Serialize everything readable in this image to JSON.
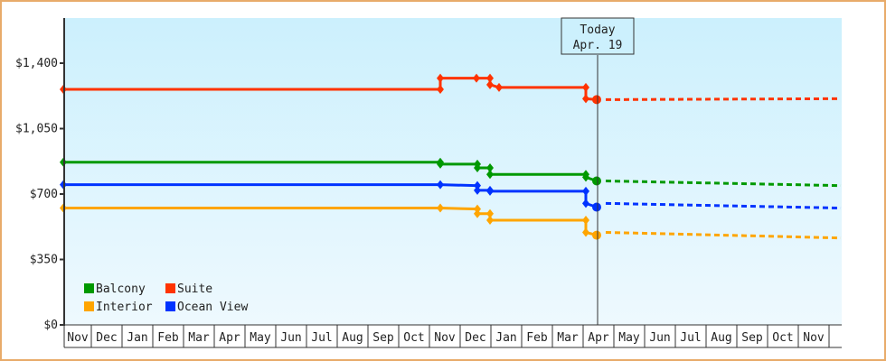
{
  "chart_data": {
    "type": "line",
    "title": "",
    "xlabel": "",
    "ylabel": "",
    "ylim": [
      0,
      1650
    ],
    "yticks": [
      0,
      350,
      700,
      1050,
      1400
    ],
    "ytick_labels": [
      "$0",
      "$350",
      "$700",
      "$1,050",
      "$1,400"
    ],
    "categories": [
      "Nov",
      "Dec",
      "Jan",
      "Feb",
      "Mar",
      "Apr",
      "May",
      "Jun",
      "Jul",
      "Aug",
      "Sep",
      "Oct",
      "Nov",
      "Dec",
      "Jan",
      "Feb",
      "Mar",
      "Apr",
      "May",
      "Jun",
      "Jul",
      "Aug",
      "Sep",
      "Oct",
      "Nov"
    ],
    "today_marker": {
      "label_line1": "Today",
      "label_line2": "Apr. 19"
    },
    "legend": [
      {
        "name": "Balcony",
        "color": "#009900"
      },
      {
        "name": "Suite",
        "color": "#ff3300"
      },
      {
        "name": "Interior",
        "color": "#ffa500"
      },
      {
        "name": "Ocean View",
        "color": "#0033ff"
      }
    ],
    "series": [
      {
        "name": "Suite",
        "color": "#ff3300",
        "history": [
          [
            70,
            1260
          ],
          [
            487,
            1260
          ],
          [
            487,
            1320
          ],
          [
            527,
            1320
          ],
          [
            542,
            1320
          ],
          [
            542,
            1285
          ],
          [
            552,
            1270
          ],
          [
            648,
            1270
          ],
          [
            648,
            1210
          ],
          [
            660,
            1205
          ]
        ],
        "projection": [
          [
            660,
            1205
          ],
          [
            930,
            1210
          ]
        ]
      },
      {
        "name": "Balcony",
        "color": "#009900",
        "history": [
          [
            70,
            870
          ],
          [
            487,
            870
          ],
          [
            487,
            860
          ],
          [
            528,
            860
          ],
          [
            528,
            840
          ],
          [
            542,
            840
          ],
          [
            542,
            805
          ],
          [
            648,
            805
          ],
          [
            648,
            790
          ],
          [
            660,
            770
          ]
        ],
        "projection": [
          [
            660,
            770
          ],
          [
            930,
            745
          ]
        ]
      },
      {
        "name": "Ocean View",
        "color": "#0033ff",
        "history": [
          [
            70,
            750
          ],
          [
            487,
            750
          ],
          [
            528,
            745
          ],
          [
            528,
            720
          ],
          [
            542,
            720
          ],
          [
            542,
            715
          ],
          [
            648,
            715
          ],
          [
            648,
            650
          ],
          [
            660,
            630
          ]
        ],
        "projection": [
          [
            660,
            650
          ],
          [
            930,
            625
          ]
        ]
      },
      {
        "name": "Interior",
        "color": "#ffa500",
        "history": [
          [
            70,
            625
          ],
          [
            487,
            625
          ],
          [
            528,
            620
          ],
          [
            528,
            595
          ],
          [
            542,
            595
          ],
          [
            542,
            560
          ],
          [
            648,
            560
          ],
          [
            648,
            495
          ],
          [
            660,
            480
          ]
        ],
        "projection": [
          [
            660,
            495
          ],
          [
            930,
            465
          ]
        ]
      }
    ]
  }
}
